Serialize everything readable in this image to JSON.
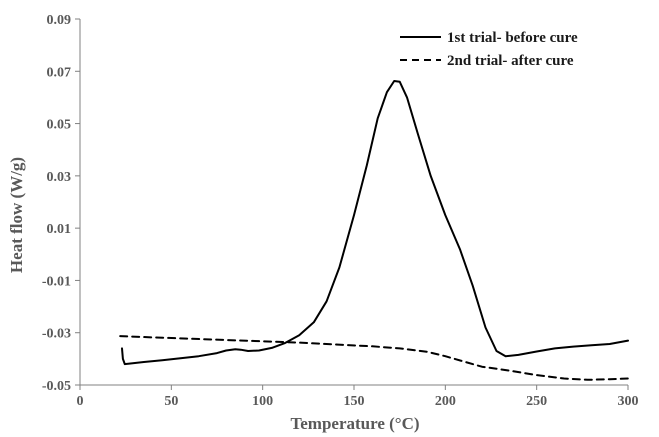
{
  "chart_data": {
    "type": "line",
    "title": "",
    "xlabel": "Temperature (°C)",
    "ylabel": "Heat flow (W/g)",
    "xlim": [
      0,
      300
    ],
    "ylim": [
      -0.05,
      0.09
    ],
    "xticks": [
      0,
      50,
      100,
      150,
      200,
      250,
      300
    ],
    "yticks": [
      -0.05,
      -0.03,
      -0.01,
      0.01,
      0.03,
      0.05,
      0.07,
      0.09
    ],
    "grid": false,
    "legend_position": "top-right",
    "series": [
      {
        "name": "1st trial- before cure",
        "line_style": "solid",
        "color": "#000000",
        "points": [
          [
            23,
            -0.036
          ],
          [
            23.5,
            -0.04
          ],
          [
            24.5,
            -0.042
          ],
          [
            27,
            -0.0418
          ],
          [
            35,
            -0.0412
          ],
          [
            45,
            -0.0405
          ],
          [
            55,
            -0.0398
          ],
          [
            65,
            -0.039
          ],
          [
            75,
            -0.0378
          ],
          [
            80,
            -0.0368
          ],
          [
            85,
            -0.0363
          ],
          [
            88,
            -0.0365
          ],
          [
            92,
            -0.037
          ],
          [
            98,
            -0.0368
          ],
          [
            105,
            -0.0358
          ],
          [
            112,
            -0.034
          ],
          [
            120,
            -0.031
          ],
          [
            128,
            -0.026
          ],
          [
            135,
            -0.018
          ],
          [
            142,
            -0.005
          ],
          [
            150,
            0.015
          ],
          [
            157,
            0.034
          ],
          [
            163,
            0.052
          ],
          [
            168,
            0.062
          ],
          [
            172,
            0.0663
          ],
          [
            175,
            0.066
          ],
          [
            179,
            0.06
          ],
          [
            185,
            0.046
          ],
          [
            192,
            0.03
          ],
          [
            200,
            0.015
          ],
          [
            208,
            0.002
          ],
          [
            215,
            -0.012
          ],
          [
            222,
            -0.028
          ],
          [
            228,
            -0.037
          ],
          [
            233,
            -0.039
          ],
          [
            240,
            -0.0385
          ],
          [
            250,
            -0.0372
          ],
          [
            260,
            -0.036
          ],
          [
            270,
            -0.0353
          ],
          [
            280,
            -0.0348
          ],
          [
            290,
            -0.0343
          ],
          [
            300,
            -0.033
          ]
        ]
      },
      {
        "name": "2nd trial- after cure",
        "line_style": "dashed",
        "color": "#000000",
        "points": [
          [
            22,
            -0.0313
          ],
          [
            40,
            -0.0318
          ],
          [
            60,
            -0.0323
          ],
          [
            80,
            -0.0328
          ],
          [
            100,
            -0.0333
          ],
          [
            120,
            -0.0338
          ],
          [
            140,
            -0.0345
          ],
          [
            160,
            -0.0352
          ],
          [
            175,
            -0.036
          ],
          [
            190,
            -0.0373
          ],
          [
            200,
            -0.039
          ],
          [
            210,
            -0.041
          ],
          [
            220,
            -0.043
          ],
          [
            235,
            -0.0445
          ],
          [
            250,
            -0.0462
          ],
          [
            265,
            -0.0475
          ],
          [
            278,
            -0.048
          ],
          [
            290,
            -0.0478
          ],
          [
            300,
            -0.0475
          ]
        ]
      }
    ]
  }
}
